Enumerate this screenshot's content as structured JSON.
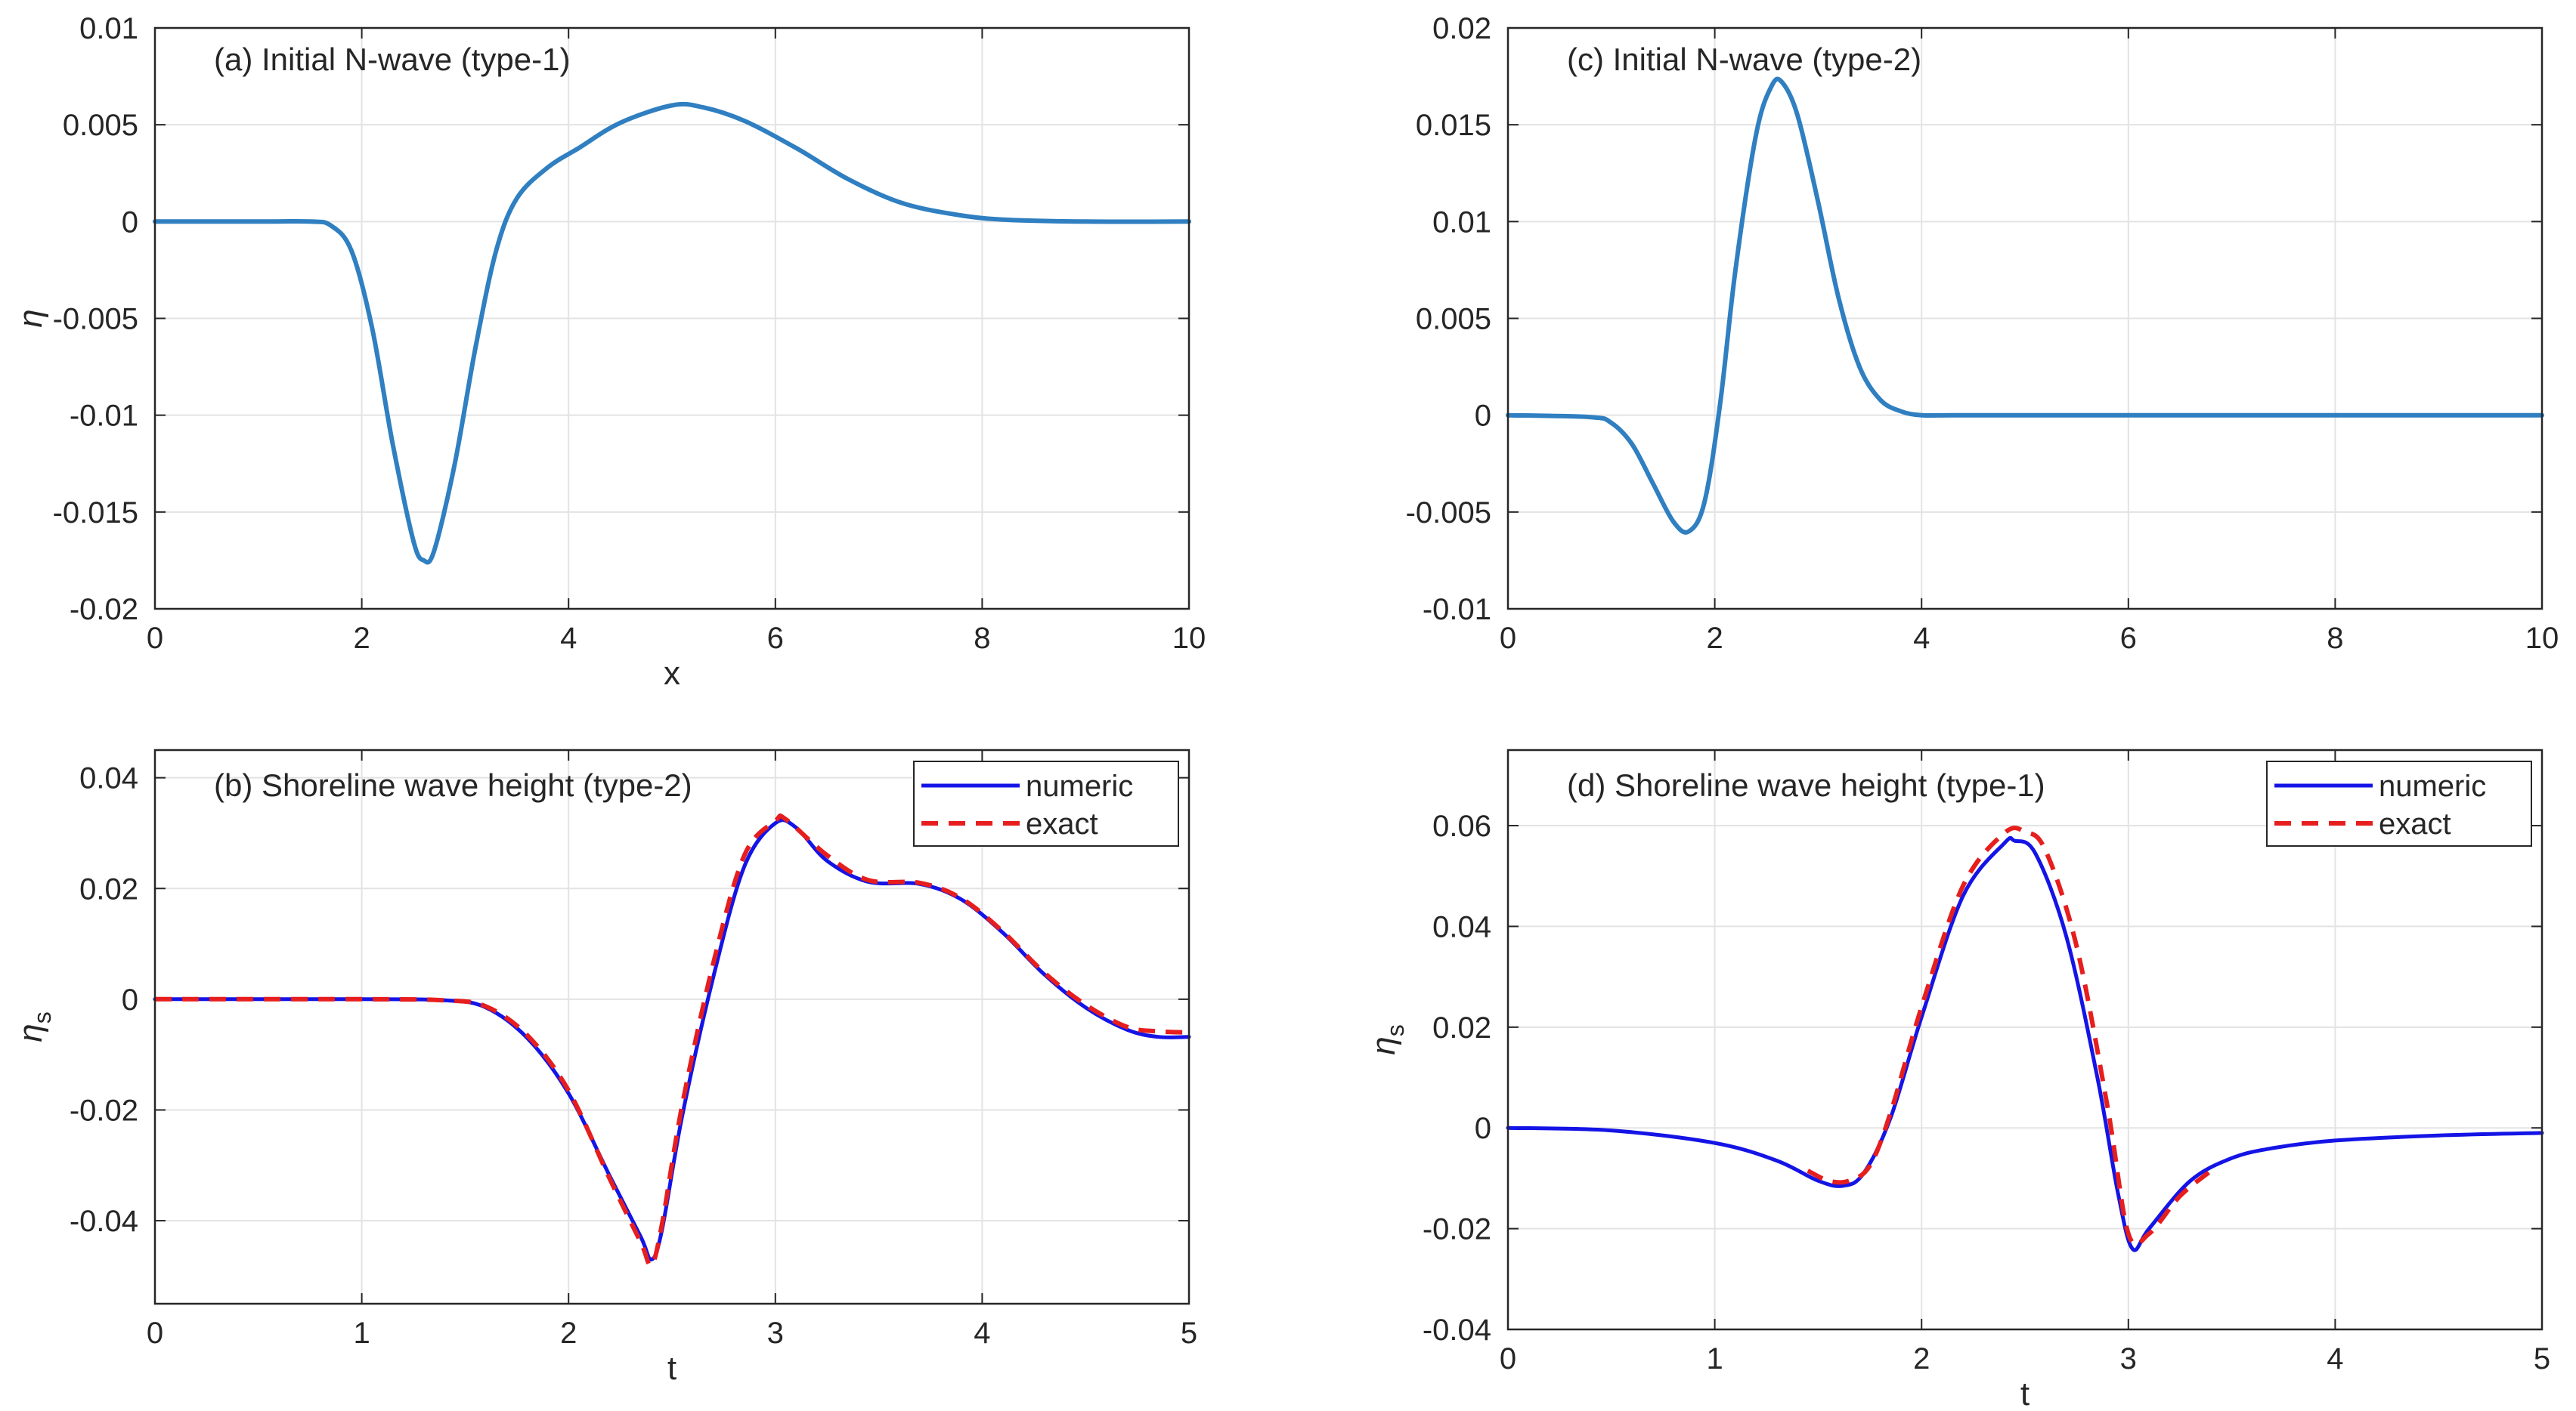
{
  "colors": {
    "initial_wave": "#2f7fc1",
    "numeric": "#1414e6",
    "exact": "#e61e1e",
    "grid": "#e3e3e3",
    "axes": "#262626"
  },
  "chart_data": [
    {
      "id": "a",
      "type": "line",
      "title": "(a) Initial N-wave (type-1)",
      "xlabel": "x",
      "ylabel": "η",
      "xlim": [
        0,
        10
      ],
      "ylim": [
        -0.02,
        0.01
      ],
      "xticks": [
        "0",
        "2",
        "4",
        "6",
        "8",
        "10"
      ],
      "yticks": [
        "0.01",
        "0.005",
        "0",
        "-0.005",
        "-0.01",
        "-0.015",
        "-0.02"
      ],
      "grid": true,
      "series": [
        {
          "name": "η",
          "style": "initial",
          "x": [
            0,
            1,
            1.5,
            1.7,
            1.9,
            2.1,
            2.3,
            2.5,
            2.6,
            2.7,
            2.9,
            3.1,
            3.3,
            3.5,
            3.8,
            4.1,
            4.5,
            5.0,
            5.3,
            5.7,
            6.2,
            6.7,
            7.2,
            7.7,
            8.2,
            9.0,
            10.0
          ],
          "y": [
            0,
            0,
            0,
            -0.0002,
            -0.0015,
            -0.0055,
            -0.0115,
            -0.0165,
            -0.0175,
            -0.017,
            -0.0125,
            -0.0065,
            -0.0015,
            0.0012,
            0.0028,
            0.0038,
            0.0051,
            0.006,
            0.0059,
            0.0052,
            0.0038,
            0.0022,
            0.001,
            0.0004,
            0.0001,
            0,
            0
          ]
        }
      ]
    },
    {
      "id": "b",
      "type": "line",
      "title": "(b) Shoreline wave height (type-2)",
      "xlabel": "t",
      "ylabel": "η",
      "ylabel_sub": "s",
      "xlim": [
        0,
        5
      ],
      "ylim": [
        -0.055,
        0.045
      ],
      "xticks": [
        "0",
        "1",
        "2",
        "3",
        "4",
        "5"
      ],
      "yticks": [
        "0.04",
        "0.02",
        "0",
        "-0.02",
        "-0.04"
      ],
      "grid": true,
      "legend": {
        "position": "top-right",
        "entries": [
          "numeric",
          "exact"
        ]
      },
      "series": [
        {
          "name": "numeric",
          "style": "solid",
          "x": [
            0,
            1.0,
            1.4,
            1.6,
            1.8,
            2.0,
            2.2,
            2.35,
            2.4,
            2.45,
            2.55,
            2.7,
            2.85,
            3.0,
            3.1,
            3.25,
            3.45,
            3.7,
            3.9,
            4.1,
            4.3,
            4.5,
            4.7,
            4.85,
            5.0
          ],
          "y": [
            0,
            0,
            -0.0002,
            -0.0015,
            -0.007,
            -0.017,
            -0.032,
            -0.043,
            -0.047,
            -0.042,
            -0.021,
            0.004,
            0.024,
            0.0318,
            0.031,
            0.025,
            0.0212,
            0.0208,
            0.018,
            0.012,
            0.0045,
            -0.0015,
            -0.0055,
            -0.0068,
            -0.0068
          ]
        },
        {
          "name": "exact",
          "style": "dashed",
          "x": [
            0,
            1.0,
            1.4,
            1.6,
            1.8,
            2.0,
            2.2,
            2.35,
            2.4,
            2.45,
            2.55,
            2.7,
            2.85,
            3.0,
            3.05,
            3.25,
            3.45,
            3.7,
            3.9,
            4.1,
            4.3,
            4.5,
            4.7,
            4.85,
            5.0
          ],
          "y": [
            0,
            0,
            -0.0002,
            -0.0013,
            -0.0065,
            -0.0165,
            -0.0325,
            -0.044,
            -0.048,
            -0.041,
            -0.019,
            0.0065,
            0.026,
            0.0322,
            0.0325,
            0.026,
            0.0215,
            0.021,
            0.0182,
            0.0122,
            0.0048,
            -0.001,
            -0.005,
            -0.0058,
            -0.006
          ]
        }
      ]
    },
    {
      "id": "c",
      "type": "line",
      "title": "(c) Initial N-wave (type-2)",
      "xlabel": "",
      "ylabel": "",
      "xlim": [
        0,
        10
      ],
      "ylim": [
        -0.01,
        0.02
      ],
      "xticks": [
        "0",
        "2",
        "4",
        "6",
        "8",
        "10"
      ],
      "yticks": [
        "0.02",
        "0.015",
        "0.01",
        "0.005",
        "0",
        "-0.005",
        "-0.01"
      ],
      "grid": true,
      "series": [
        {
          "name": "η",
          "style": "initial",
          "x": [
            0,
            0.8,
            1.0,
            1.2,
            1.4,
            1.6,
            1.75,
            1.9,
            2.05,
            2.2,
            2.4,
            2.55,
            2.65,
            2.8,
            3.0,
            3.2,
            3.4,
            3.6,
            3.8,
            4.0,
            4.3,
            5.0,
            10.0
          ],
          "y": [
            0,
            -0.0001,
            -0.0004,
            -0.0015,
            -0.0035,
            -0.0055,
            -0.006,
            -0.0045,
            0.0005,
            0.0075,
            0.0145,
            0.017,
            0.0172,
            0.0155,
            0.011,
            0.006,
            0.0025,
            0.0008,
            0.0002,
            0,
            0,
            0,
            0
          ]
        }
      ]
    },
    {
      "id": "d",
      "type": "line",
      "title": "(d) Shoreline wave height (type-1)",
      "xlabel": "t",
      "ylabel": "η",
      "ylabel_sub": "s",
      "xlim": [
        0,
        5
      ],
      "ylim": [
        -0.04,
        0.075
      ],
      "xticks": [
        "0",
        "1",
        "2",
        "3",
        "4",
        "5"
      ],
      "yticks": [
        "0.06",
        "0.04",
        "0.02",
        "0",
        "-0.02",
        "-0.04"
      ],
      "grid": true,
      "legend": {
        "position": "top-right",
        "entries": [
          "numeric",
          "exact"
        ]
      },
      "series": [
        {
          "name": "numeric",
          "style": "solid",
          "x": [
            0,
            0.5,
            1.0,
            1.3,
            1.5,
            1.62,
            1.72,
            1.85,
            2.0,
            2.2,
            2.4,
            2.45,
            2.55,
            2.7,
            2.85,
            2.95,
            3.02,
            3.1,
            3.3,
            3.5,
            3.7,
            4.0,
            4.5,
            5.0
          ],
          "y": [
            0,
            -0.0005,
            -0.003,
            -0.0065,
            -0.0105,
            -0.0115,
            -0.009,
            0.002,
            0.022,
            0.046,
            0.0565,
            0.057,
            0.0545,
            0.038,
            0.01,
            -0.013,
            -0.024,
            -0.02,
            -0.0105,
            -0.006,
            -0.004,
            -0.0025,
            -0.0015,
            -0.001
          ]
        },
        {
          "name": "exact",
          "style": "dashed",
          "x": [
            1.45,
            1.55,
            1.65,
            1.75,
            1.85,
            2.0,
            2.2,
            2.4,
            2.5,
            2.6,
            2.75,
            2.9,
            3.0,
            3.1,
            3.25,
            3.4
          ],
          "y": [
            -0.0085,
            -0.0105,
            -0.0105,
            -0.0075,
            0.003,
            0.024,
            0.048,
            0.0585,
            0.0588,
            0.055,
            0.036,
            0.004,
            -0.021,
            -0.021,
            -0.0135,
            -0.0085
          ]
        }
      ]
    }
  ]
}
